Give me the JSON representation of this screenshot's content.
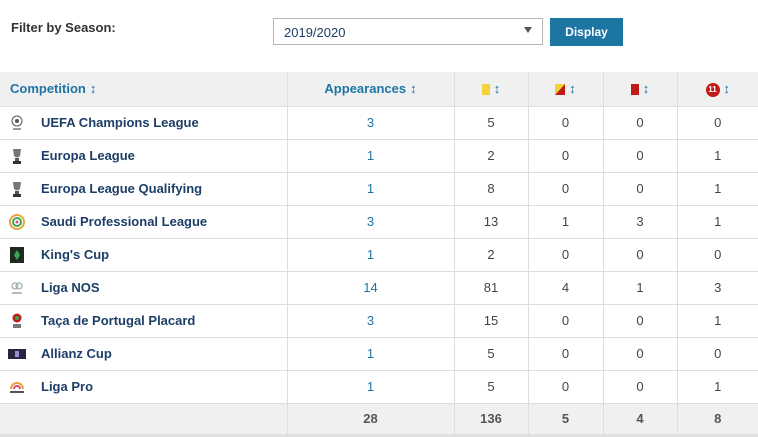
{
  "filter": {
    "label": "Filter by Season:",
    "season_selected": "2019/2020",
    "display_label": "Display"
  },
  "table": {
    "headers": {
      "competition": "Competition",
      "appearances": "Appearances",
      "sort_symbol": "↕",
      "penalty_icon_text": "11"
    },
    "rows": [
      {
        "competition": "UEFA Champions League",
        "logo": "champions-league-logo",
        "appearances": "3",
        "yellow": "5",
        "yellow_red": "0",
        "red": "0",
        "penalty": "0"
      },
      {
        "competition": "Europa League",
        "logo": "europa-league-logo",
        "appearances": "1",
        "yellow": "2",
        "yellow_red": "0",
        "red": "0",
        "penalty": "1"
      },
      {
        "competition": "Europa League Qualifying",
        "logo": "europa-league-logo",
        "appearances": "1",
        "yellow": "8",
        "yellow_red": "0",
        "red": "0",
        "penalty": "1"
      },
      {
        "competition": "Saudi Professional League",
        "logo": "saudi-league-logo",
        "appearances": "3",
        "yellow": "13",
        "yellow_red": "1",
        "red": "3",
        "penalty": "1"
      },
      {
        "competition": "King's Cup",
        "logo": "kings-cup-logo",
        "appearances": "1",
        "yellow": "2",
        "yellow_red": "0",
        "red": "0",
        "penalty": "0"
      },
      {
        "competition": "Liga NOS",
        "logo": "liga-nos-logo",
        "appearances": "14",
        "yellow": "81",
        "yellow_red": "4",
        "red": "1",
        "penalty": "3"
      },
      {
        "competition": "Taça de Portugal Placard",
        "logo": "taca-de-portugal-logo",
        "appearances": "3",
        "yellow": "15",
        "yellow_red": "0",
        "red": "0",
        "penalty": "1"
      },
      {
        "competition": "Allianz Cup",
        "logo": "allianz-cup-logo",
        "appearances": "1",
        "yellow": "5",
        "yellow_red": "0",
        "red": "0",
        "penalty": "0"
      },
      {
        "competition": "Liga Pro",
        "logo": "liga-pro-logo",
        "appearances": "1",
        "yellow": "5",
        "yellow_red": "0",
        "red": "0",
        "penalty": "1"
      }
    ],
    "totals": {
      "appearances": "28",
      "yellow": "136",
      "yellow_red": "5",
      "red": "4",
      "penalty": "8"
    }
  },
  "colors": {
    "accent": "#1d75a3",
    "link": "#1d3e66",
    "header_bg": "#f0f0f0",
    "yellow_card": "#f4d33a",
    "red_card": "#c11b17"
  }
}
